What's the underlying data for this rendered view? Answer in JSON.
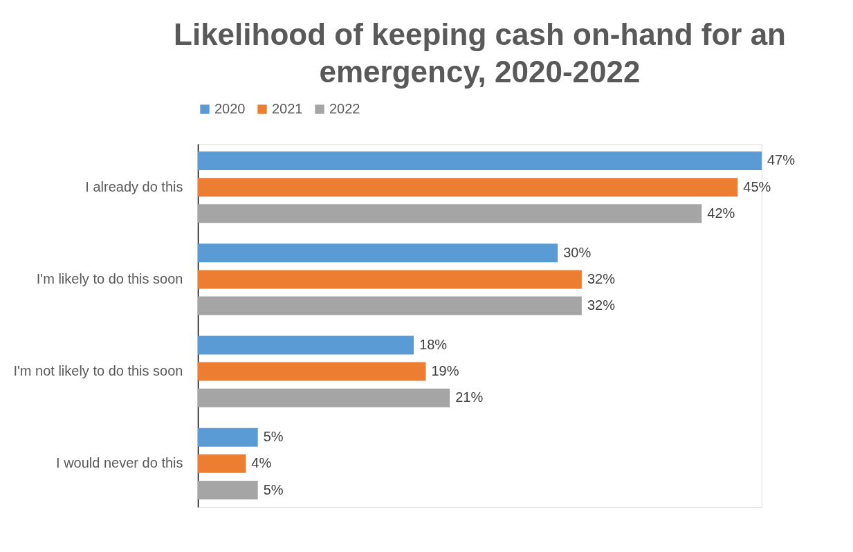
{
  "chart_data": {
    "type": "bar",
    "orientation": "horizontal",
    "title": "Likelihood of keeping cash on-hand for an emergency, 2020-2022",
    "categories": [
      "I already do this",
      "I'm likely to do this soon",
      "I'm not likely to do this soon",
      "I would never do this"
    ],
    "series": [
      {
        "name": "2020",
        "color": "#5b9bd5",
        "values": [
          47,
          30,
          18,
          5
        ],
        "value_labels": [
          "47%",
          "30%",
          "18%",
          "5%"
        ]
      },
      {
        "name": "2021",
        "color": "#ed7d31",
        "values": [
          45,
          32,
          19,
          4
        ],
        "value_labels": [
          "45%",
          "32%",
          "19%",
          "4%"
        ]
      },
      {
        "name": "2022",
        "color": "#a5a5a5",
        "values": [
          42,
          32,
          21,
          5
        ],
        "value_labels": [
          "42%",
          "32%",
          "21%",
          "5%"
        ]
      }
    ],
    "legend": "top",
    "grid": false
  }
}
